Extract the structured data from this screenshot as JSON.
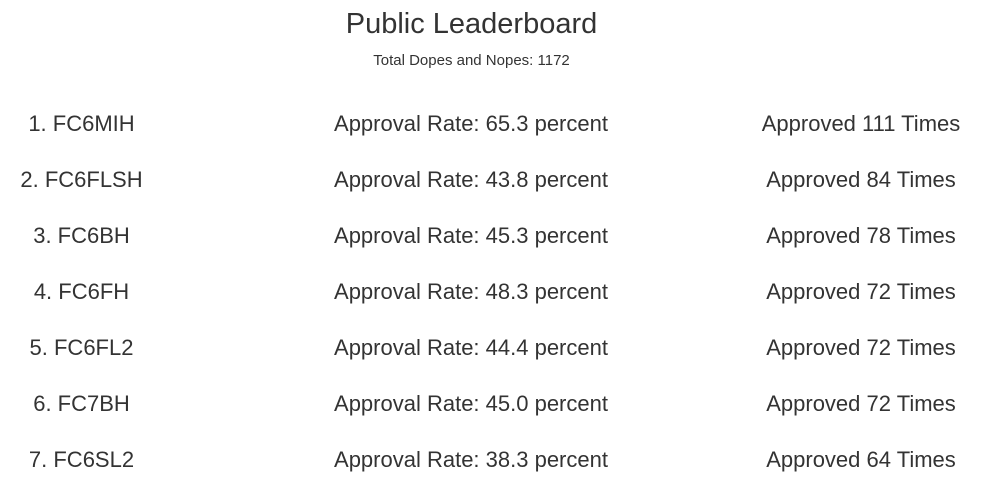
{
  "header": {
    "title": "Public Leaderboard",
    "subtitle": "Total Dopes and Nopes: 1172"
  },
  "entries": [
    {
      "name": "1. FC6MIH",
      "rate": "Approval Rate: 65.3 percent",
      "count": "Approved 111 Times"
    },
    {
      "name": "2. FC6FLSH",
      "rate": "Approval Rate: 43.8 percent",
      "count": "Approved 84 Times"
    },
    {
      "name": "3. FC6BH",
      "rate": "Approval Rate: 45.3 percent",
      "count": "Approved 78 Times"
    },
    {
      "name": "4. FC6FH",
      "rate": "Approval Rate: 48.3 percent",
      "count": "Approved 72 Times"
    },
    {
      "name": "5. FC6FL2",
      "rate": "Approval Rate: 44.4 percent",
      "count": "Approved 72 Times"
    },
    {
      "name": "6. FC7BH",
      "rate": "Approval Rate: 45.0 percent",
      "count": "Approved 72 Times"
    },
    {
      "name": "7. FC6SL2",
      "rate": "Approval Rate: 38.3 percent",
      "count": "Approved 64 Times"
    }
  ]
}
